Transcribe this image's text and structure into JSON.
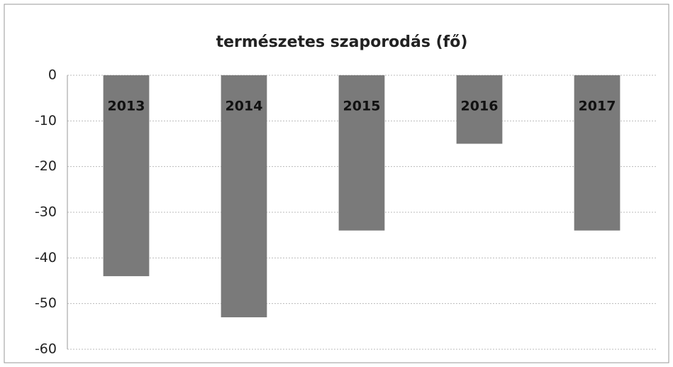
{
  "chart_data": {
    "type": "bar",
    "title": "természetes szaporodás (fő)",
    "categories": [
      "2013",
      "2014",
      "2015",
      "2016",
      "2017"
    ],
    "values": [
      -44,
      -53,
      -34,
      -15,
      -34
    ],
    "color": "#7a7a7a",
    "ylim": [
      -60,
      0
    ],
    "yticks": [
      0,
      -10,
      -20,
      -30,
      -40,
      -50,
      -60
    ],
    "grid": true
  }
}
